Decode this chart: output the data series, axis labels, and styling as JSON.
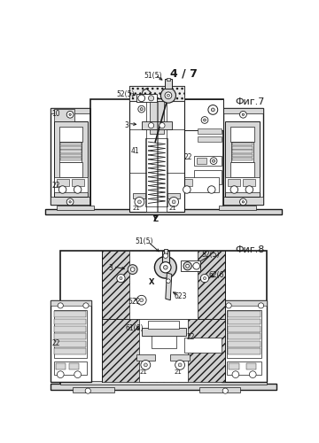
{
  "bg_color": "#ffffff",
  "line_color": "#1a1a1a",
  "gray_fill": "#b0b0b0",
  "light_gray": "#d8d8d8",
  "med_gray": "#909090",
  "fig_width": 3.6,
  "fig_height": 5.0,
  "dpi": 100,
  "page_label": "4 / 7",
  "fig7_label": "Фиг.7",
  "fig8_label": "Фиг.8",
  "arrow_z_label": "Z"
}
